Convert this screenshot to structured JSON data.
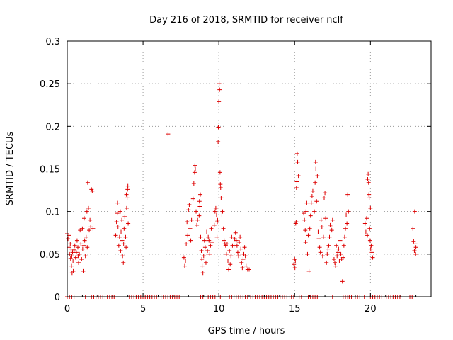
{
  "chart_data": {
    "type": "scatter",
    "title": "Day 216 of 2018, SRMTID for receiver nclf",
    "xlabel": "GPS time / hours",
    "ylabel": "SRMTID / TECUs",
    "xlim": [
      0,
      24
    ],
    "ylim": [
      0,
      0.3
    ],
    "xticks": [
      0,
      5,
      10,
      15,
      20
    ],
    "xtick_labels": [
      "0",
      "5",
      "10",
      "15",
      "20"
    ],
    "yticks": [
      0,
      0.05,
      0.1,
      0.15,
      0.2,
      0.25,
      0.3
    ],
    "ytick_labels": [
      "0",
      "0.05",
      "0.1",
      "0.15",
      "0.2",
      "0.25",
      "0.3"
    ],
    "grid": true,
    "marker": "+",
    "color": "#dd0000",
    "series": [
      {
        "name": "SRMTID",
        "points": [
          [
            0.0,
            0.074
          ],
          [
            0.05,
            0.068
          ],
          [
            0.1,
            0.072
          ],
          [
            0.12,
            0.058
          ],
          [
            0.15,
            0.05
          ],
          [
            0.2,
            0.062
          ],
          [
            0.22,
            0.045
          ],
          [
            0.25,
            0.056
          ],
          [
            0.28,
            0.036
          ],
          [
            0.3,
            0.048
          ],
          [
            0.32,
            0.028
          ],
          [
            0.35,
            0.052
          ],
          [
            0.38,
            0.042
          ],
          [
            0.4,
            0.03
          ],
          [
            0.45,
            0.055
          ],
          [
            0.5,
            0.06
          ],
          [
            0.55,
            0.046
          ],
          [
            0.6,
            0.052
          ],
          [
            0.65,
            0.066
          ],
          [
            0.7,
            0.058
          ],
          [
            0.72,
            0.048
          ],
          [
            0.75,
            0.04
          ],
          [
            0.8,
            0.05
          ],
          [
            0.85,
            0.078
          ],
          [
            0.9,
            0.062
          ],
          [
            0.95,
            0.044
          ],
          [
            1.0,
            0.08
          ],
          [
            1.02,
            0.056
          ],
          [
            1.05,
            0.03
          ],
          [
            1.1,
            0.06
          ],
          [
            1.12,
            0.092
          ],
          [
            1.15,
            0.066
          ],
          [
            1.2,
            0.048
          ],
          [
            1.25,
            0.07
          ],
          [
            1.3,
            0.1
          ],
          [
            1.32,
            0.058
          ],
          [
            1.35,
            0.134
          ],
          [
            1.4,
            0.104
          ],
          [
            1.45,
            0.078
          ],
          [
            1.5,
            0.09
          ],
          [
            1.55,
            0.082
          ],
          [
            1.6,
            0.126
          ],
          [
            1.65,
            0.124
          ],
          [
            1.7,
            0.08
          ],
          [
            3.2,
            0.072
          ],
          [
            3.25,
            0.088
          ],
          [
            3.3,
            0.098
          ],
          [
            3.32,
            0.11
          ],
          [
            3.35,
            0.082
          ],
          [
            3.4,
            0.06
          ],
          [
            3.45,
            0.07
          ],
          [
            3.5,
            0.1
          ],
          [
            3.52,
            0.054
          ],
          [
            3.55,
            0.076
          ],
          [
            3.6,
            0.09
          ],
          [
            3.62,
            0.066
          ],
          [
            3.65,
            0.048
          ],
          [
            3.7,
            0.04
          ],
          [
            3.72,
            0.062
          ],
          [
            3.75,
            0.08
          ],
          [
            3.8,
            0.094
          ],
          [
            3.85,
            0.07
          ],
          [
            3.88,
            0.058
          ],
          [
            3.9,
            0.12
          ],
          [
            3.92,
            0.104
          ],
          [
            3.95,
            0.116
          ],
          [
            3.98,
            0.126
          ],
          [
            4.0,
            0.13
          ],
          [
            4.02,
            0.086
          ],
          [
            6.65,
            0.191
          ],
          [
            7.7,
            0.046
          ],
          [
            7.75,
            0.036
          ],
          [
            7.8,
            0.042
          ],
          [
            7.85,
            0.062
          ],
          [
            7.9,
            0.088
          ],
          [
            7.95,
            0.072
          ],
          [
            8.0,
            0.102
          ],
          [
            8.05,
            0.108
          ],
          [
            8.1,
            0.08
          ],
          [
            8.15,
            0.066
          ],
          [
            8.2,
            0.09
          ],
          [
            8.3,
            0.115
          ],
          [
            8.35,
            0.133
          ],
          [
            8.4,
            0.146
          ],
          [
            8.42,
            0.154
          ],
          [
            8.45,
            0.15
          ],
          [
            8.5,
            0.1
          ],
          [
            8.55,
            0.084
          ],
          [
            8.6,
            0.09
          ],
          [
            8.7,
            0.095
          ],
          [
            8.72,
            0.112
          ],
          [
            8.75,
            0.106
          ],
          [
            8.78,
            0.12
          ],
          [
            8.8,
            0.07
          ],
          [
            8.85,
            0.054
          ],
          [
            8.88,
            0.044
          ],
          [
            8.9,
            0.036
          ],
          [
            8.95,
            0.028
          ],
          [
            9.0,
            0.048
          ],
          [
            9.05,
            0.066
          ],
          [
            9.1,
            0.058
          ],
          [
            9.15,
            0.04
          ],
          [
            9.2,
            0.076
          ],
          [
            9.25,
            0.054
          ],
          [
            9.3,
            0.07
          ],
          [
            9.35,
            0.066
          ],
          [
            9.4,
            0.05
          ],
          [
            9.45,
            0.06
          ],
          [
            9.5,
            0.08
          ],
          [
            9.55,
            0.064
          ],
          [
            9.7,
            0.084
          ],
          [
            9.75,
            0.1
          ],
          [
            9.8,
            0.104
          ],
          [
            9.85,
            0.096
          ],
          [
            9.88,
            0.07
          ],
          [
            9.9,
            0.088
          ],
          [
            9.92,
            0.09
          ],
          [
            9.95,
            0.182
          ],
          [
            9.97,
            0.199
          ],
          [
            10.0,
            0.229
          ],
          [
            10.02,
            0.25
          ],
          [
            10.05,
            0.243
          ],
          [
            10.08,
            0.146
          ],
          [
            10.1,
            0.132
          ],
          [
            10.12,
            0.128
          ],
          [
            10.15,
            0.116
          ],
          [
            10.2,
            0.096
          ],
          [
            10.25,
            0.1
          ],
          [
            10.3,
            0.08
          ],
          [
            10.35,
            0.066
          ],
          [
            10.4,
            0.062
          ],
          [
            10.45,
            0.06
          ],
          [
            10.5,
            0.05
          ],
          [
            10.55,
            0.062
          ],
          [
            10.6,
            0.042
          ],
          [
            10.65,
            0.032
          ],
          [
            10.7,
            0.054
          ],
          [
            10.75,
            0.038
          ],
          [
            10.8,
            0.048
          ],
          [
            10.85,
            0.07
          ],
          [
            10.9,
            0.06
          ],
          [
            11.0,
            0.06
          ],
          [
            11.05,
            0.068
          ],
          [
            11.1,
            0.075
          ],
          [
            11.15,
            0.066
          ],
          [
            11.2,
            0.06
          ],
          [
            11.25,
            0.052
          ],
          [
            11.3,
            0.048
          ],
          [
            11.35,
            0.064
          ],
          [
            11.4,
            0.07
          ],
          [
            11.45,
            0.056
          ],
          [
            11.5,
            0.04
          ],
          [
            11.55,
            0.034
          ],
          [
            11.6,
            0.044
          ],
          [
            11.65,
            0.05
          ],
          [
            11.7,
            0.058
          ],
          [
            11.75,
            0.048
          ],
          [
            11.8,
            0.036
          ],
          [
            11.9,
            0.032
          ],
          [
            12.0,
            0.032
          ],
          [
            14.95,
            0.038
          ],
          [
            15.0,
            0.044
          ],
          [
            15.02,
            0.034
          ],
          [
            15.05,
            0.042
          ],
          [
            15.07,
            0.086
          ],
          [
            15.1,
            0.088
          ],
          [
            15.12,
            0.128
          ],
          [
            15.15,
            0.135
          ],
          [
            15.17,
            0.168
          ],
          [
            15.2,
            0.158
          ],
          [
            15.25,
            0.142
          ],
          [
            15.6,
            0.098
          ],
          [
            15.65,
            0.09
          ],
          [
            15.7,
            0.078
          ],
          [
            15.72,
            0.064
          ],
          [
            15.75,
            0.1
          ],
          [
            15.8,
            0.11
          ],
          [
            15.85,
            0.05
          ],
          [
            15.9,
            0.072
          ],
          [
            15.95,
            0.03
          ],
          [
            16.0,
            0.08
          ],
          [
            16.05,
            0.095
          ],
          [
            16.1,
            0.11
          ],
          [
            16.15,
            0.118
          ],
          [
            16.2,
            0.124
          ],
          [
            16.3,
            0.1
          ],
          [
            16.35,
            0.134
          ],
          [
            16.38,
            0.158
          ],
          [
            16.4,
            0.15
          ],
          [
            16.45,
            0.112
          ],
          [
            16.5,
            0.142
          ],
          [
            16.55,
            0.076
          ],
          [
            16.6,
            0.068
          ],
          [
            16.65,
            0.058
          ],
          [
            16.7,
            0.052
          ],
          [
            16.75,
            0.09
          ],
          [
            16.8,
            0.082
          ],
          [
            16.85,
            0.048
          ],
          [
            16.9,
            0.07
          ],
          [
            16.95,
            0.116
          ],
          [
            17.0,
            0.122
          ],
          [
            17.05,
            0.092
          ],
          [
            17.1,
            0.04
          ],
          [
            17.15,
            0.05
          ],
          [
            17.2,
            0.056
          ],
          [
            17.25,
            0.06
          ],
          [
            17.3,
            0.07
          ],
          [
            17.35,
            0.084
          ],
          [
            17.4,
            0.082
          ],
          [
            17.45,
            0.078
          ],
          [
            17.5,
            0.09
          ],
          [
            17.6,
            0.044
          ],
          [
            17.65,
            0.04
          ],
          [
            17.7,
            0.036
          ],
          [
            17.75,
            0.06
          ],
          [
            17.8,
            0.048
          ],
          [
            17.85,
            0.052
          ],
          [
            17.9,
            0.056
          ],
          [
            17.95,
            0.042
          ],
          [
            18.0,
            0.066
          ],
          [
            18.05,
            0.05
          ],
          [
            18.1,
            0.044
          ],
          [
            18.15,
            0.018
          ],
          [
            18.2,
            0.046
          ],
          [
            18.25,
            0.06
          ],
          [
            18.3,
            0.07
          ],
          [
            18.35,
            0.08
          ],
          [
            18.4,
            0.096
          ],
          [
            18.45,
            0.086
          ],
          [
            18.5,
            0.12
          ],
          [
            18.55,
            0.1
          ],
          [
            19.65,
            0.086
          ],
          [
            19.7,
            0.076
          ],
          [
            19.75,
            0.092
          ],
          [
            19.8,
            0.072
          ],
          [
            19.82,
            0.138
          ],
          [
            19.85,
            0.144
          ],
          [
            19.88,
            0.134
          ],
          [
            19.9,
            0.12
          ],
          [
            19.92,
            0.116
          ],
          [
            19.95,
            0.08
          ],
          [
            19.98,
            0.066
          ],
          [
            20.0,
            0.104
          ],
          [
            20.02,
            0.056
          ],
          [
            20.05,
            0.06
          ],
          [
            20.1,
            0.052
          ],
          [
            20.15,
            0.046
          ],
          [
            22.8,
            0.08
          ],
          [
            22.85,
            0.065
          ],
          [
            22.9,
            0.054
          ],
          [
            22.92,
            0.1
          ],
          [
            22.95,
            0.062
          ],
          [
            22.98,
            0.05
          ],
          [
            23.0,
            0.058
          ]
        ],
        "zero_runs": [
          [
            0.0,
            0.5
          ],
          [
            1.2,
            1.3
          ],
          [
            1.6,
            3.2
          ],
          [
            4.1,
            7.5
          ],
          [
            8.8,
            9.0
          ],
          [
            9.3,
            9.45
          ],
          [
            9.6,
            9.8
          ],
          [
            10.1,
            10.2
          ],
          [
            10.7,
            12.0
          ],
          [
            12.1,
            15.0
          ],
          [
            15.3,
            15.5
          ],
          [
            15.9,
            16.5
          ],
          [
            17.5,
            17.6
          ],
          [
            18.2,
            18.5
          ],
          [
            18.6,
            18.8
          ],
          [
            19.0,
            19.6
          ],
          [
            20.0,
            22.0
          ],
          [
            22.6,
            22.8
          ]
        ]
      }
    ]
  }
}
